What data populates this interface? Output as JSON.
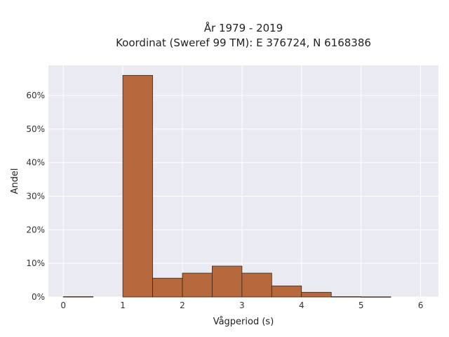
{
  "chart_data": {
    "type": "bar",
    "title": "År 1979 - 2019",
    "subtitle": "Koordinat (Sweref 99 TM): E 376724, N 6168386",
    "xlabel": "Vågperiod (s)",
    "ylabel": "Andel",
    "xlim": [
      -0.25,
      6.3
    ],
    "ylim": [
      0,
      69
    ],
    "x_ticks": [
      0,
      1,
      2,
      3,
      4,
      5,
      6
    ],
    "y_ticks": [
      0,
      10,
      20,
      30,
      40,
      50,
      60
    ],
    "y_tick_format": "percent",
    "grid": true,
    "bin_width": 0.5,
    "bins": [
      {
        "x0": 0.0,
        "x1": 0.5,
        "value": 0.1
      },
      {
        "x0": 1.0,
        "x1": 1.5,
        "value": 66.0
      },
      {
        "x0": 1.5,
        "x1": 2.0,
        "value": 5.6
      },
      {
        "x0": 2.0,
        "x1": 2.5,
        "value": 7.1
      },
      {
        "x0": 2.5,
        "x1": 3.0,
        "value": 9.2
      },
      {
        "x0": 3.0,
        "x1": 3.5,
        "value": 7.1
      },
      {
        "x0": 3.5,
        "x1": 4.0,
        "value": 3.3
      },
      {
        "x0": 4.0,
        "x1": 4.5,
        "value": 1.4
      },
      {
        "x0": 4.5,
        "x1": 5.0,
        "value": 0.1
      },
      {
        "x0": 5.0,
        "x1": 5.5,
        "value": 0.05
      }
    ],
    "colors": {
      "bar_fill": "#b5693d",
      "bar_stroke": "#3a2418",
      "plot_background": "#eaeaf2",
      "grid": "#ffffff"
    }
  }
}
